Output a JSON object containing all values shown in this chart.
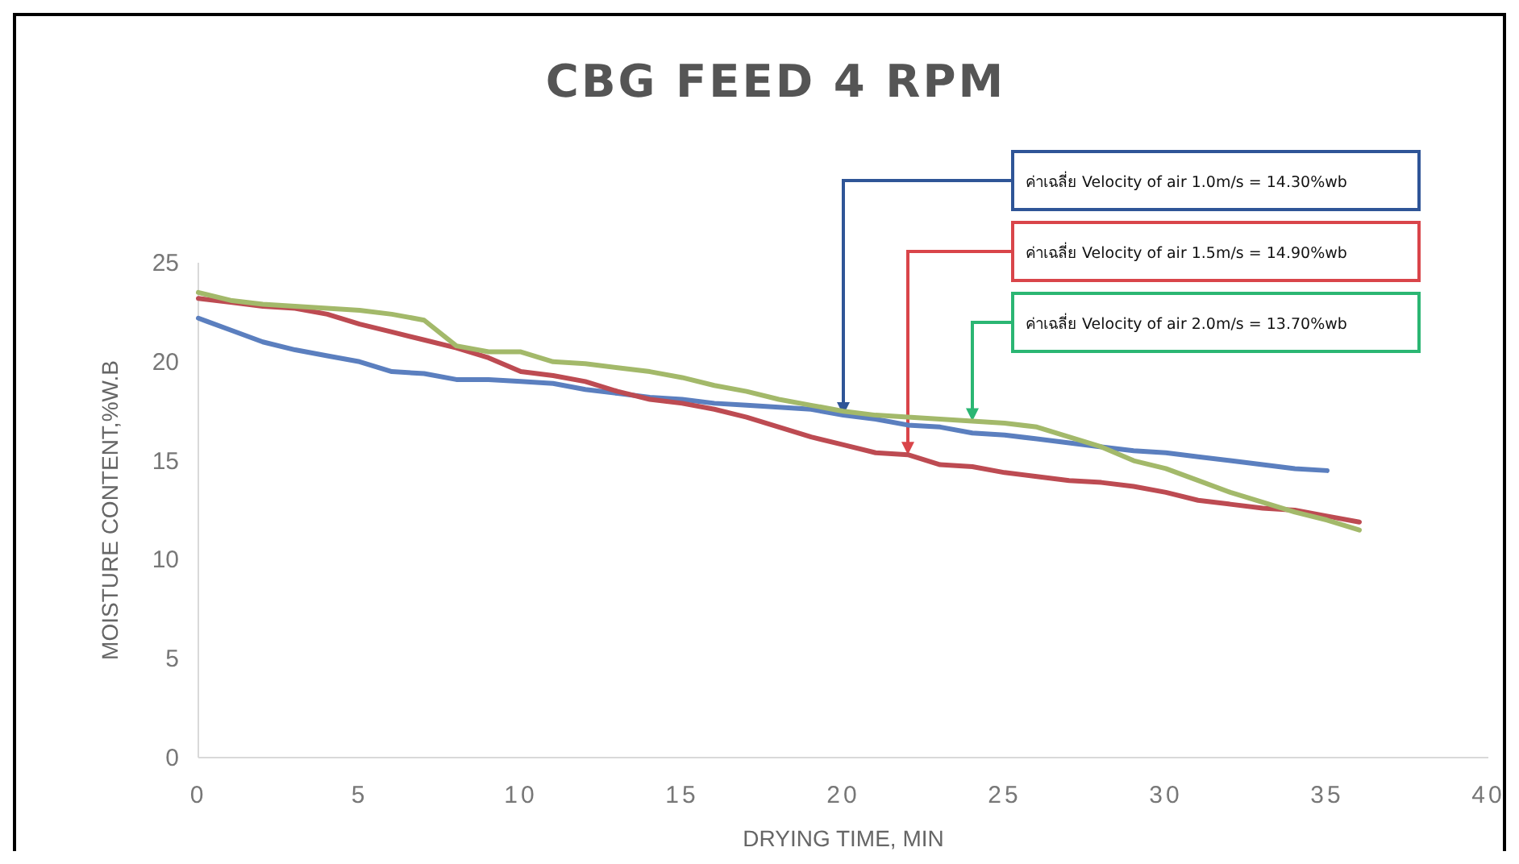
{
  "chart_data": {
    "type": "line",
    "title": "CBG FEED 4 RPM",
    "xlabel": "DRYING TIME, MIN",
    "ylabel": "MOISTURE CONTENT,%W.B",
    "x": [
      0,
      1,
      2,
      3,
      4,
      5,
      6,
      7,
      8,
      9,
      10,
      11,
      12,
      13,
      14,
      15,
      16,
      17,
      18,
      19,
      20,
      21,
      22,
      23,
      24,
      25,
      26,
      27,
      28,
      29,
      30,
      31,
      32,
      33,
      34,
      35,
      36
    ],
    "series": [
      {
        "color": "#5b7fbf",
        "x": [
          0,
          1,
          2,
          3,
          4,
          5,
          6,
          7,
          8,
          9,
          10,
          11,
          12,
          13,
          14,
          15,
          16,
          17,
          18,
          19,
          20,
          21,
          22,
          23,
          24,
          25,
          26,
          27,
          28,
          29,
          30,
          31,
          32,
          33,
          34,
          35
        ],
        "values": [
          22.2,
          21.6,
          21.0,
          20.6,
          20.3,
          20.0,
          19.5,
          19.4,
          19.1,
          19.1,
          19.0,
          18.9,
          18.6,
          18.4,
          18.2,
          18.1,
          17.9,
          17.8,
          17.7,
          17.6,
          17.3,
          17.1,
          16.8,
          16.7,
          16.4,
          16.3,
          16.1,
          15.9,
          15.7,
          15.5,
          15.4,
          15.2,
          15.0,
          14.8,
          14.6,
          14.5
        ]
      },
      {
        "color": "#bd4b52",
        "values": [
          23.2,
          23.0,
          22.8,
          22.7,
          22.4,
          21.9,
          21.5,
          21.1,
          20.7,
          20.2,
          19.5,
          19.3,
          19.0,
          18.5,
          18.1,
          17.9,
          17.6,
          17.2,
          16.7,
          16.2,
          15.8,
          15.4,
          15.3,
          14.8,
          14.7,
          14.4,
          14.2,
          14.0,
          13.9,
          13.7,
          13.4,
          13.0,
          12.8,
          12.6,
          12.5,
          12.2,
          11.9
        ]
      },
      {
        "color": "#a3b96a",
        "values": [
          23.5,
          23.1,
          22.9,
          22.8,
          22.7,
          22.6,
          22.4,
          22.1,
          20.8,
          20.5,
          20.5,
          20.0,
          19.9,
          19.7,
          19.5,
          19.2,
          18.8,
          18.5,
          18.1,
          17.8,
          17.5,
          17.3,
          17.2,
          17.1,
          17.0,
          16.9,
          16.7,
          16.2,
          15.7,
          15.0,
          14.6,
          14.0,
          13.4,
          12.9,
          12.4,
          12.0,
          11.5
        ]
      }
    ],
    "annotations": [
      {
        "text": "ค่าเฉลี่ย Velocity of air 1.0m/s = 14.30%wb",
        "x": 20,
        "y": 17.3
      },
      {
        "text": "ค่าเฉลี่ย Velocity of air 1.5m/s = 14.90%wb",
        "x": 22,
        "y": 15.3
      },
      {
        "text": "ค่าเฉลี่ย Velocity of air 2.0m/s = 13.70%wb",
        "x": 24,
        "y": 17.0
      }
    ],
    "xlim": [
      0,
      40
    ],
    "xticks": [
      0,
      5,
      10,
      15,
      20,
      25,
      30,
      35,
      40
    ],
    "ylim": [
      0,
      25
    ],
    "yticks": [
      0,
      5,
      10,
      15,
      20,
      25
    ],
    "grid": false,
    "marker": "none",
    "line_style": "solid"
  }
}
